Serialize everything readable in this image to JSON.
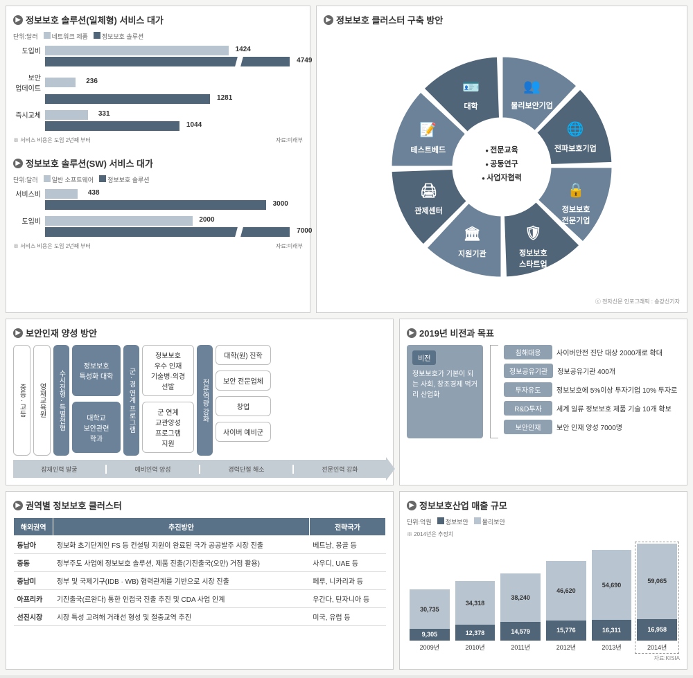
{
  "colors": {
    "light": "#b8c4cf",
    "dark": "#516578",
    "mid": "#6b8299",
    "accent": "#8fa0b0",
    "header": "#5a7288"
  },
  "chart1": {
    "title": "정보보호 솔루션(일체형) 서비스 대가",
    "unit": "단위:달러",
    "legend": [
      "네트워크 제품",
      "정보보호 솔루션"
    ],
    "rows": [
      {
        "label": "도입비",
        "a": 1424,
        "b": 4749,
        "break": true
      },
      {
        "label": "보안\n업데이트",
        "a": 236,
        "b": 1281
      },
      {
        "label": "즉시교체",
        "a": 331,
        "b": 1044
      }
    ],
    "note": "※ 서비스 비용은 도입 2년째 부터",
    "source": "자료:미래부",
    "max": 2000
  },
  "chart2": {
    "title": "정보보호 솔루션(SW) 서비스 대가",
    "unit": "단위:달러",
    "legend": [
      "일반 소프트웨어",
      "정보보호 솔루션"
    ],
    "rows": [
      {
        "label": "서비스비",
        "a": 438,
        "b": 3000
      },
      {
        "label": "도입비",
        "a": 2000,
        "b": 7000,
        "break": true
      }
    ],
    "note": "※ 서비스 비용은 도입 2년째 부터",
    "source": "자료:미래부",
    "max": 3500
  },
  "donut": {
    "title": "정보보호 클러스터 구축 방안",
    "center": [
      "전문교육",
      "공동연구",
      "사업자협력"
    ],
    "segments": [
      {
        "label": "물리보안기업",
        "angle": 247
      },
      {
        "label": "전파보호기업",
        "angle": 292
      },
      {
        "label": "정보보호\n전문기업",
        "angle": 337
      },
      {
        "label": "정보보호\n스타트업",
        "angle": 22
      },
      {
        "label": "지원기관",
        "angle": 67
      },
      {
        "label": "관제센터",
        "angle": 112
      },
      {
        "label": "테스트베드",
        "angle": 157
      },
      {
        "label": "대학",
        "angle": 202
      }
    ],
    "credit": "ⓒ 전자신문 인포그래픽 : 송강신기자"
  },
  "talent": {
    "title": "보안인재 양성 방안",
    "col1": [
      "중등 · 고등",
      "영재교육원"
    ],
    "col2": "수시전형 · 특별전형",
    "col3": [
      "정보보호\n특성화 대학",
      "대학교\n보안관련\n학과"
    ],
    "col4": "군 · 경 연계 프로그램",
    "col5": [
      "정보보호\n우수 인재\n기술병·의경\n선발",
      "군 연계\n교관양성\n프로그램\n지원"
    ],
    "col6": "전문역량 강화",
    "col7": [
      "대학(원) 진학",
      "보안 전문업체",
      "창업",
      "사이버 예비군"
    ],
    "arrow": [
      "잠재인력 발굴",
      "예비인력 양성",
      "경력단절 해소",
      "전문인력 강화"
    ]
  },
  "vision": {
    "title": "2019년 비전과 목표",
    "visionLabel": "비전",
    "visionText": "정보보호가 기본이 되는 사회, 창조경제 먹거리 산업화",
    "goals": [
      {
        "tag": "침해대응",
        "text": "사이버안전 진단 대상 2000개로 확대"
      },
      {
        "tag": "정보공유기관",
        "text": "정보공유기관 400개"
      },
      {
        "tag": "투자유도",
        "text": "정보보호에 5%이상 투자기업 10% 투자로"
      },
      {
        "tag": "R&D투자",
        "text": "세계 일류 정보보호 제품 기술 10개 확보"
      },
      {
        "tag": "보안인재",
        "text": "보안 인재 양성 7000명"
      }
    ]
  },
  "table": {
    "title": "권역별 정보보호 클러스터",
    "headers": [
      "해외권역",
      "추진방안",
      "전략국가"
    ],
    "rows": [
      [
        "동남아",
        "정보화 초기단계인 FS 등 컨설팅 지원이 완료된 국가 공공발주 시장 진출",
        "베트남, 몽골 등"
      ],
      [
        "중동",
        "정부주도 사업에 정보보호 솔루션, 제품 진출(기진출국(오만) 거점 활용)",
        "사우디, UAE 등"
      ],
      [
        "중남미",
        "정부 및 국제기구(IDB · WB) 협력관계를 기반으로 시장 진출",
        "페루, 니카리과 등"
      ],
      [
        "아프리카",
        "기진출국(르완다) 통한 인접국 진출 추진 및 CDA 사업 인계",
        "우간다, 탄자니아 등"
      ],
      [
        "선진시장",
        "시장 특성 고려해 거래선 형성 및 절충교역 추진",
        "미국, 유럽 등"
      ]
    ]
  },
  "market": {
    "title": "정보보호산업 매출 규모",
    "unit": "단위:억원",
    "legend": [
      "정보보안",
      "물리보안"
    ],
    "note": "※ 2014년은 추정치",
    "data": [
      {
        "year": "2009년",
        "a": 9305,
        "b": 30735
      },
      {
        "year": "2010년",
        "a": 12378,
        "b": 34318
      },
      {
        "year": "2011년",
        "a": 14579,
        "b": 38240
      },
      {
        "year": "2012년",
        "a": 15776,
        "b": 46620
      },
      {
        "year": "2013년",
        "a": 16311,
        "b": 54690
      },
      {
        "year": "2014년",
        "a": 16958,
        "b": 59065,
        "highlight": true
      }
    ],
    "max": 76000,
    "source": "자료:KISIA"
  }
}
